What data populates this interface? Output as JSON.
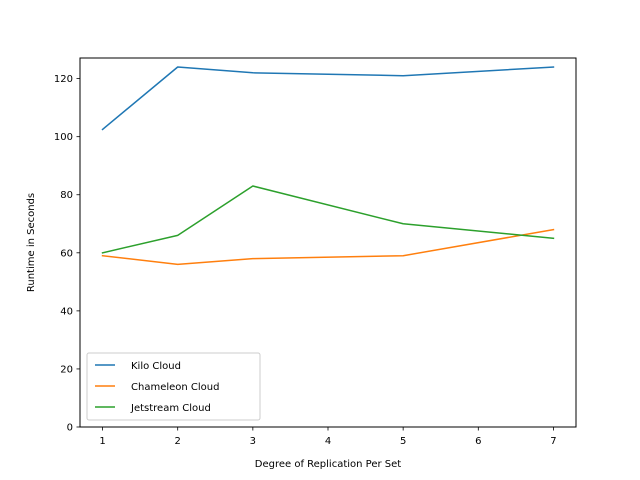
{
  "chart_data": {
    "type": "line",
    "title": "",
    "xlabel": "Degree of Replication Per Set",
    "ylabel": "Runtime in Seconds",
    "x": [
      1,
      2,
      3,
      5,
      7
    ],
    "xticks": [
      1,
      2,
      3,
      4,
      5,
      6,
      7
    ],
    "yticks": [
      0,
      20,
      40,
      60,
      80,
      100,
      120
    ],
    "xlim": [
      0.7,
      7.3
    ],
    "ylim": [
      0,
      127.1
    ],
    "grid": false,
    "legend_position": "lower-left",
    "series": [
      {
        "name": "Kilo Cloud",
        "color": "#1f77b4",
        "values": [
          102.5,
          124,
          122,
          121,
          124
        ]
      },
      {
        "name": "Chameleon Cloud",
        "color": "#ff7f0e",
        "values": [
          59,
          56,
          58,
          59,
          68
        ]
      },
      {
        "name": "Jetstream Cloud",
        "color": "#2ca02c",
        "values": [
          60,
          66,
          83,
          70,
          65
        ]
      }
    ]
  }
}
